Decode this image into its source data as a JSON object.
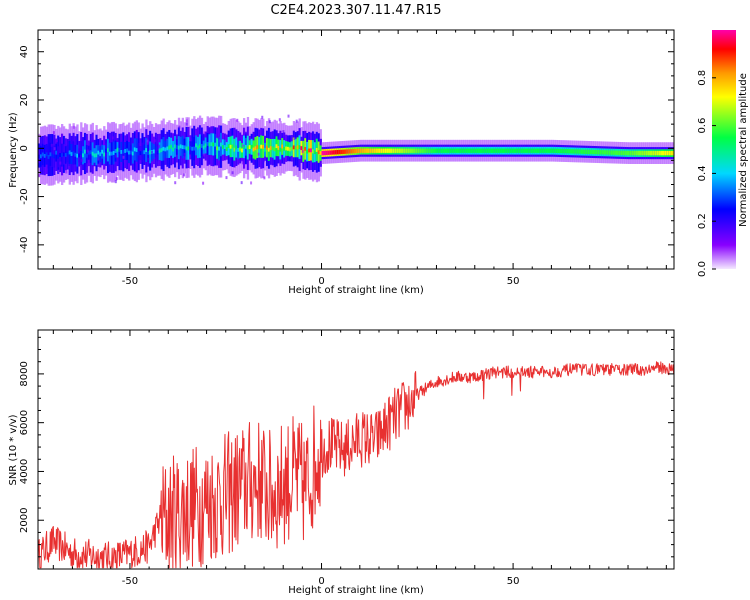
{
  "title": "C2E4.2023.307.11.47.R15",
  "colors": {
    "snr_line": "#e83030",
    "axis": "#000000",
    "background": "#ffffff"
  },
  "chart_data": [
    {
      "type": "heatmap",
      "xlabel": "Height of straight line (km)",
      "ylabel": "Frequency (Hz)",
      "xlim": [
        -74,
        92
      ],
      "ylim": [
        -50,
        49
      ],
      "xticks": [
        -50,
        0,
        50
      ],
      "yticks": [
        -40,
        -20,
        0,
        20,
        40
      ],
      "colorbar": {
        "label": "Normalized spectral amplitude",
        "range": [
          0.0,
          1.0
        ],
        "ticks": [
          "0.0",
          "0.2",
          "0.4",
          "0.6",
          "0.8"
        ],
        "colormap": "rainbow (violet-blue-cyan-green-yellow-red-magenta)"
      },
      "signal_trace": [
        {
          "x": -74,
          "freq": -3,
          "amplitude": 0.35
        },
        {
          "x": -60,
          "freq": -2,
          "amplitude": 0.45
        },
        {
          "x": -45,
          "freq": -1,
          "amplitude": 0.45
        },
        {
          "x": -30,
          "freq": 1,
          "amplitude": 0.55
        },
        {
          "x": -20,
          "freq": 0,
          "amplitude": 0.75
        },
        {
          "x": -8,
          "freq": 0,
          "amplitude": 0.95
        },
        {
          "x": 0,
          "freq": -2,
          "amplitude": 1.0
        },
        {
          "x": 10,
          "freq": -1,
          "amplitude": 0.8
        },
        {
          "x": 30,
          "freq": -1,
          "amplitude": 0.55
        },
        {
          "x": 60,
          "freq": -1,
          "amplitude": 0.55
        },
        {
          "x": 80,
          "freq": -2,
          "amplitude": 0.6
        },
        {
          "x": 92,
          "freq": -2,
          "amplitude": 0.75
        }
      ]
    },
    {
      "type": "line",
      "xlabel": "Height of straight line (km)",
      "ylabel": "SNR (10 * v/v)",
      "xlim": [
        -74,
        92
      ],
      "ylim": [
        0,
        9800
      ],
      "xticks": [
        -50,
        0,
        50
      ],
      "yticks": [
        2000,
        4000,
        6000,
        8000
      ],
      "series": [
        {
          "x": [
            -74,
            -70,
            -65,
            -60,
            -55,
            -50,
            -45,
            -42,
            -38,
            -34,
            -30,
            -26,
            -22,
            -19,
            -16,
            -13,
            -10,
            -7,
            -4,
            -1,
            2,
            6,
            10,
            14,
            18,
            22,
            26,
            30,
            35,
            40,
            45,
            50,
            55,
            60,
            65,
            70,
            75,
            80,
            85,
            88,
            92
          ],
          "y": [
            600,
            1200,
            700,
            600,
            500,
            700,
            1000,
            2200,
            2500,
            2800,
            3000,
            3200,
            3500,
            3800,
            3900,
            3300,
            3800,
            4000,
            3600,
            5000,
            5200,
            5000,
            5500,
            5400,
            6200,
            6800,
            7300,
            7700,
            7900,
            7900,
            8100,
            8100,
            8100,
            8100,
            8200,
            8200,
            8200,
            8200,
            8200,
            8300,
            8200
          ]
        }
      ]
    }
  ]
}
